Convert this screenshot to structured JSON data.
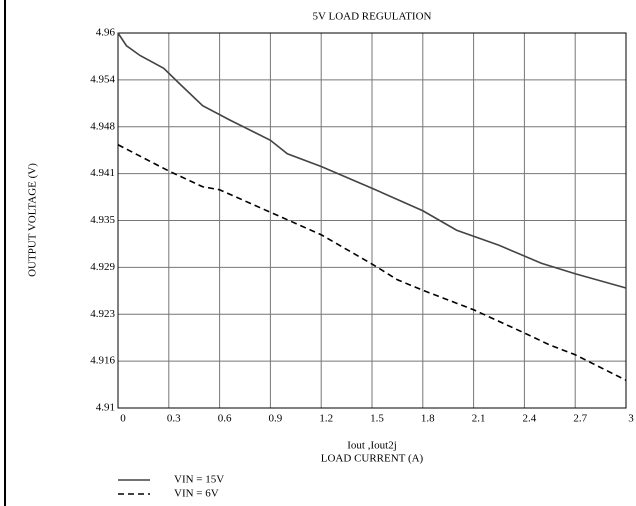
{
  "chart_data": {
    "type": "line",
    "title": "5V LOAD REGULATION",
    "x_label_top": "Iout ,Iout2j",
    "x_label": "LOAD CURRENT (A)",
    "y_label": "OUTPUT VOLTAGE (V)",
    "xlim": [
      0,
      3
    ],
    "xticks": [
      0,
      0.3,
      0.6,
      0.9,
      1.2,
      1.5,
      1.8,
      2.1,
      2.4,
      2.7,
      3
    ],
    "ylim": [
      4.91,
      4.96
    ],
    "yticks": [
      {
        "value": 4.91,
        "label": "4.91"
      },
      {
        "value": 4.91625,
        "label": "4.916"
      },
      {
        "value": 4.9225,
        "label": "4.923"
      },
      {
        "value": 4.92875,
        "label": "4.929"
      },
      {
        "value": 4.935,
        "label": "4.935"
      },
      {
        "value": 4.94125,
        "label": "4.941"
      },
      {
        "value": 4.9475,
        "label": "4.948"
      },
      {
        "value": 4.95375,
        "label": "4.954"
      },
      {
        "value": 4.96,
        "label": "4.96"
      }
    ],
    "grid": true,
    "series": [
      {
        "name": "VIN = 15V",
        "color": "#444444",
        "dash": "solid",
        "x": [
          0,
          0.05,
          0.13,
          0.27,
          0.37,
          0.5,
          0.66,
          0.9,
          1.0,
          1.2,
          1.5,
          1.8,
          2.0,
          2.25,
          2.5,
          2.7,
          3.0
        ],
        "values": [
          4.96,
          4.9583,
          4.957,
          4.9553,
          4.9531,
          4.9503,
          4.9484,
          4.9457,
          4.9439,
          4.9422,
          4.9393,
          4.9363,
          4.9337,
          4.9317,
          4.9293,
          4.9279,
          4.926
        ]
      },
      {
        "name": "VIN = 6V",
        "color": "#000000",
        "dash": "dashed",
        "x": [
          0,
          0.3,
          0.5,
          0.6,
          0.9,
          1.2,
          1.5,
          1.65,
          1.8,
          2.1,
          2.4,
          2.55,
          2.7,
          3.0
        ],
        "values": [
          4.9451,
          4.9416,
          4.9395,
          4.9391,
          4.9361,
          4.9331,
          4.9292,
          4.9271,
          4.9257,
          4.9231,
          4.92,
          4.9184,
          4.9171,
          4.9137
        ]
      }
    ]
  }
}
